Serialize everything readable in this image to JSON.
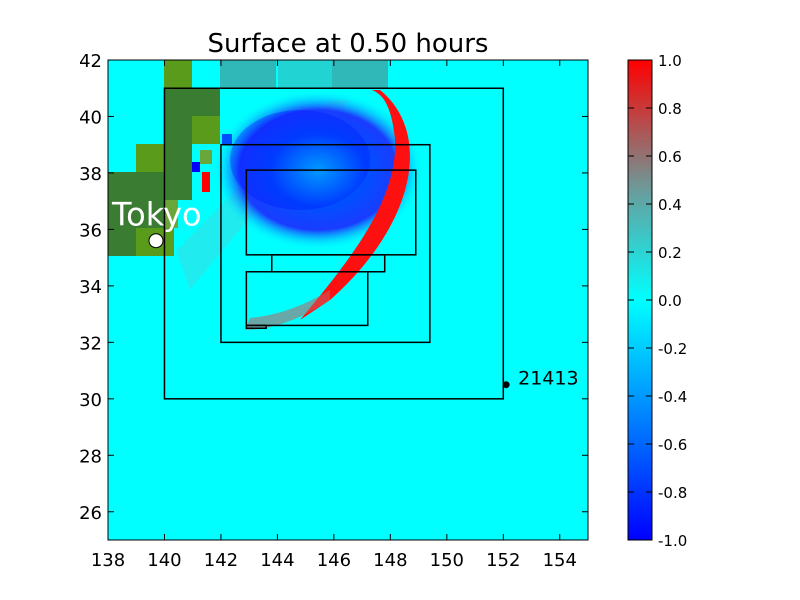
{
  "chart_data": {
    "type": "heatmap",
    "title": "Surface at 0.50 hours",
    "xlabel": "",
    "ylabel": "",
    "xlim": [
      138,
      155
    ],
    "ylim": [
      25,
      42
    ],
    "xticks": [
      "138",
      "140",
      "142",
      "144",
      "146",
      "148",
      "150",
      "152",
      "154"
    ],
    "yticks": [
      "26",
      "28",
      "30",
      "32",
      "34",
      "36",
      "38",
      "40",
      "42"
    ],
    "colorbar": {
      "min": -1.0,
      "max": 1.0,
      "ticks": [
        "-1.0",
        "-0.8",
        "-0.6",
        "-0.4",
        "-0.2",
        "0.0",
        "0.2",
        "0.4",
        "0.6",
        "0.8",
        "1.0"
      ],
      "colors": {
        "neg": "#0000ff",
        "zero": "#00ffff",
        "pos": "#ff0000"
      }
    },
    "water_color": "#00ffff",
    "land_colors": [
      "#3a7d32",
      "#5a9b1c",
      "#6aa63a"
    ],
    "regions": [
      {
        "name": "region-1",
        "x": [
          140,
          152
        ],
        "y": [
          30,
          41
        ]
      },
      {
        "name": "region-2",
        "x": [
          142,
          149.4
        ],
        "y": [
          32,
          39
        ]
      },
      {
        "name": "region-3",
        "x": [
          142.9,
          148.9
        ],
        "y": [
          35.1,
          38.1
        ]
      },
      {
        "name": "region-4",
        "x": [
          143.8,
          147.8
        ],
        "y": [
          34.5,
          35.1
        ]
      },
      {
        "name": "region-5",
        "x": [
          142.9,
          147.2
        ],
        "y": [
          32.6,
          34.5
        ]
      },
      {
        "name": "region-6",
        "x": [
          142.9,
          143.6
        ],
        "y": [
          32.5,
          32.6
        ]
      }
    ],
    "annotations": [
      {
        "label": "Tokyo",
        "x": 139.7,
        "y": 35.6,
        "marker": "white-circle"
      },
      {
        "label": "21413",
        "x": 152.1,
        "y": 30.5,
        "marker": "black-dot"
      }
    ]
  }
}
